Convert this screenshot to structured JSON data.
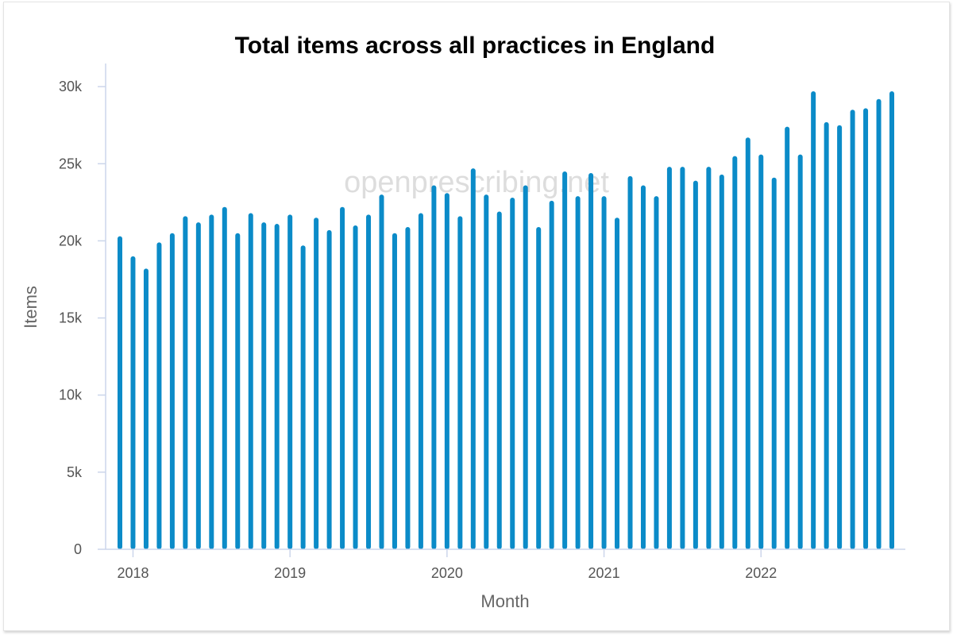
{
  "chart_data": {
    "type": "bar",
    "title": "Total items across all practices in England",
    "xlabel": "Month",
    "ylabel": "Items",
    "watermark": "openprescribing.net",
    "ylim": [
      0,
      31500
    ],
    "yticks": [
      {
        "value": 0,
        "label": "0"
      },
      {
        "value": 5000,
        "label": "5k"
      },
      {
        "value": 10000,
        "label": "10k"
      },
      {
        "value": 15000,
        "label": "15k"
      },
      {
        "value": 20000,
        "label": "20k"
      },
      {
        "value": 25000,
        "label": "25k"
      },
      {
        "value": 30000,
        "label": "30k"
      }
    ],
    "xticks": [
      {
        "date": "2018-01",
        "label": "2018"
      },
      {
        "date": "2019-01",
        "label": "2019"
      },
      {
        "date": "2020-01",
        "label": "2020"
      },
      {
        "date": "2021-01",
        "label": "2021"
      },
      {
        "date": "2022-01",
        "label": "2022"
      }
    ],
    "x": [
      "2017-12",
      "2018-01",
      "2018-02",
      "2018-03",
      "2018-04",
      "2018-05",
      "2018-06",
      "2018-07",
      "2018-08",
      "2018-09",
      "2018-10",
      "2018-11",
      "2018-12",
      "2019-01",
      "2019-02",
      "2019-03",
      "2019-04",
      "2019-05",
      "2019-06",
      "2019-07",
      "2019-08",
      "2019-09",
      "2019-10",
      "2019-11",
      "2019-12",
      "2020-01",
      "2020-02",
      "2020-03",
      "2020-04",
      "2020-05",
      "2020-06",
      "2020-07",
      "2020-08",
      "2020-09",
      "2020-10",
      "2020-11",
      "2020-12",
      "2021-01",
      "2021-02",
      "2021-03",
      "2021-04",
      "2021-05",
      "2021-06",
      "2021-07",
      "2021-08",
      "2021-09",
      "2021-10",
      "2021-11",
      "2021-12",
      "2022-01",
      "2022-02",
      "2022-03",
      "2022-04",
      "2022-05",
      "2022-06",
      "2022-07",
      "2022-08",
      "2022-09",
      "2022-10",
      "2022-11"
    ],
    "values": [
      20300,
      19000,
      18200,
      19900,
      20500,
      21600,
      21200,
      21700,
      22200,
      20500,
      21800,
      21200,
      21100,
      21700,
      19700,
      21500,
      20700,
      22200,
      21000,
      21700,
      23000,
      20500,
      20900,
      21800,
      23600,
      23100,
      21600,
      24700,
      23000,
      21900,
      22800,
      23600,
      20900,
      22600,
      24500,
      22900,
      24400,
      22900,
      21500,
      24200,
      23600,
      22900,
      24800,
      24800,
      23900,
      24800,
      24300,
      25500,
      26700,
      25600,
      24100,
      27400,
      25600,
      29700,
      27700,
      27500,
      28500,
      28600,
      29200,
      29700
    ],
    "grid": false,
    "color": "#0b8bc8"
  }
}
